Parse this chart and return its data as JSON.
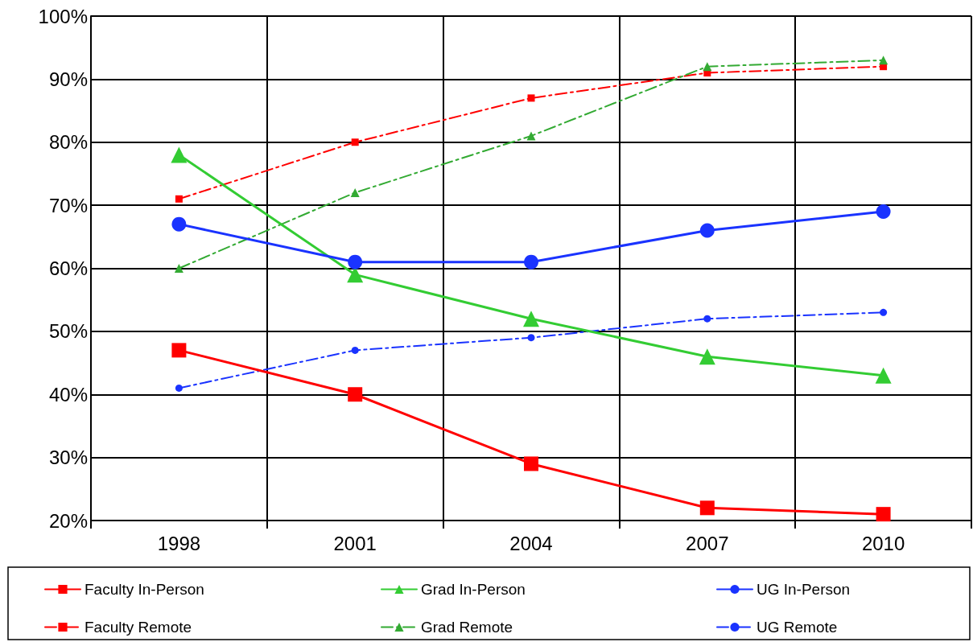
{
  "chart_data": {
    "type": "line",
    "categories": [
      "1998",
      "2001",
      "2004",
      "2007",
      "2010"
    ],
    "series": [
      {
        "name": "Faculty In-Person",
        "color": "#ff0000",
        "marker": "square",
        "line_style": "solid",
        "values": [
          47,
          40,
          29,
          22,
          21
        ]
      },
      {
        "name": "Grad In-Person",
        "color": "#33cc33",
        "marker": "triangle",
        "line_style": "solid",
        "values": [
          78,
          59,
          52,
          46,
          43
        ]
      },
      {
        "name": "UG In-Person",
        "color": "#1a33ff",
        "marker": "circle",
        "line_style": "solid",
        "values": [
          67,
          61,
          61,
          66,
          69
        ]
      },
      {
        "name": "Faculty Remote",
        "color": "#ff0000",
        "marker": "square",
        "line_style": "dashed",
        "values": [
          71,
          80,
          87,
          91,
          92
        ]
      },
      {
        "name": "Grad Remote",
        "color": "#33aa33",
        "marker": "triangle",
        "line_style": "dashed",
        "values": [
          60,
          72,
          81,
          92,
          93
        ]
      },
      {
        "name": "UG Remote",
        "color": "#1a33ff",
        "marker": "circle",
        "line_style": "dashed",
        "values": [
          41,
          47,
          49,
          52,
          53
        ]
      }
    ],
    "ylim": [
      20,
      100
    ],
    "yticks": [
      {
        "value": 20,
        "label": "20%"
      },
      {
        "value": 30,
        "label": "30%"
      },
      {
        "value": 40,
        "label": "40%"
      },
      {
        "value": 50,
        "label": "50%"
      },
      {
        "value": 60,
        "label": "60%"
      },
      {
        "value": 70,
        "label": "70%"
      },
      {
        "value": 80,
        "label": "80%"
      },
      {
        "value": 90,
        "label": "90%"
      },
      {
        "value": 100,
        "label": "100%"
      }
    ],
    "grid": true,
    "legend": "bottom"
  }
}
